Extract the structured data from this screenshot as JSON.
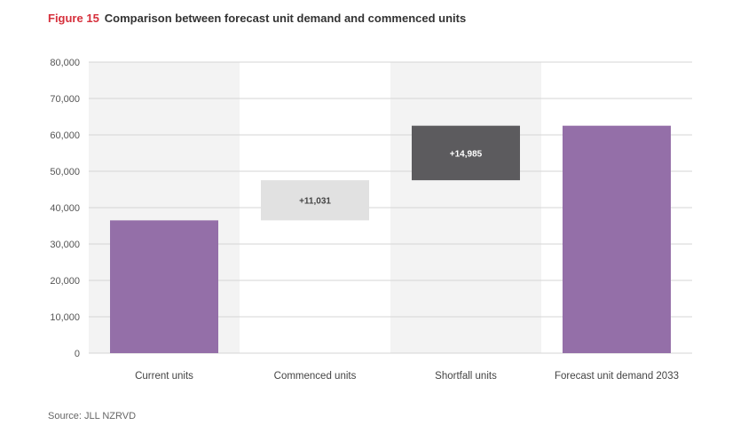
{
  "header": {
    "figure_label": "Figure 15",
    "title": "Comparison between forecast unit demand and commenced units"
  },
  "source": "Source: JLL NZRVD",
  "chart_data": {
    "type": "bar",
    "subtype": "waterfall",
    "title": "Comparison between forecast unit demand and commenced units",
    "xlabel": "",
    "ylabel": "",
    "ylim": [
      0,
      80000
    ],
    "yticks": [
      0,
      10000,
      20000,
      30000,
      40000,
      50000,
      60000,
      70000,
      80000
    ],
    "ytick_labels": [
      "0",
      "10,000",
      "20,000",
      "30,000",
      "40,000",
      "50,000",
      "60,000",
      "70,000",
      "80,000"
    ],
    "categories": [
      "Current units",
      "Commenced units",
      "Shortfall units",
      "Forecast unit demand 2033"
    ],
    "bars": [
      {
        "category": "Current units",
        "base": 0,
        "value": 36500,
        "label": "",
        "color": "#946fa8"
      },
      {
        "category": "Commenced units",
        "base": 36500,
        "value": 11031,
        "label": "+11,031",
        "color": "#e1e1e1"
      },
      {
        "category": "Shortfall units",
        "base": 47531,
        "value": 14985,
        "label": "+14,985",
        "color": "#5c5b5e"
      },
      {
        "category": "Forecast unit demand 2033",
        "base": 0,
        "value": 62516,
        "label": "",
        "color": "#946fa8"
      }
    ],
    "shaded_columns": [
      0,
      2
    ],
    "colors": {
      "shade": "#f3f3f3",
      "grid": "#d5d5d5",
      "label_dark": "#444444",
      "label_light": "#ffffff"
    }
  }
}
